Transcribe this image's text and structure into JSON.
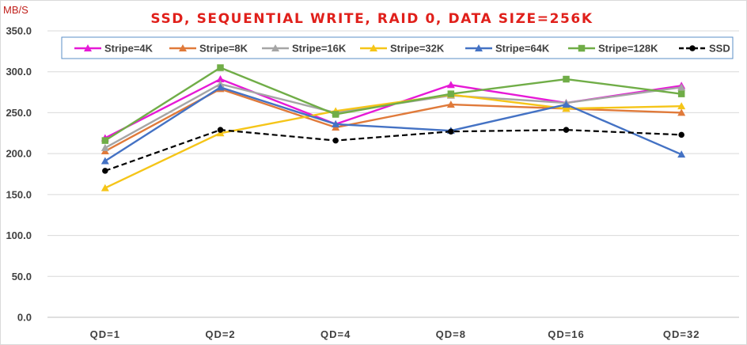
{
  "chart_data": {
    "type": "line",
    "title": "SSD, SEQUENTIAL WRITE, RAID 0, DATA SIZE=256K",
    "unit_label": "MB/S",
    "categories": [
      "QD=1",
      "QD=2",
      "QD=4",
      "QD=8",
      "QD=16",
      "QD=32"
    ],
    "ylim": [
      0,
      350
    ],
    "y_ticks": [
      "0.0",
      "50.0",
      "100.0",
      "150.0",
      "200.0",
      "250.0",
      "300.0",
      "350.0"
    ],
    "grid": "horizontal",
    "legend_position": "top",
    "series": [
      {
        "name": "Stripe=4K",
        "color": "#e619d6",
        "marker": "triangle",
        "dashed": false,
        "values": [
          219,
          291,
          236,
          284,
          262,
          283
        ]
      },
      {
        "name": "Stripe=8K",
        "color": "#e07a3a",
        "marker": "triangle",
        "dashed": false,
        "values": [
          203,
          279,
          232,
          260,
          255,
          250
        ]
      },
      {
        "name": "Stripe=16K",
        "color": "#a5a5a5",
        "marker": "triangle",
        "dashed": false,
        "values": [
          207,
          285,
          250,
          271,
          262,
          281
        ]
      },
      {
        "name": "Stripe=32K",
        "color": "#f5c518",
        "marker": "triangle",
        "dashed": false,
        "values": [
          158,
          225,
          252,
          272,
          255,
          258
        ]
      },
      {
        "name": "Stripe=64K",
        "color": "#4472c4",
        "marker": "triangle",
        "dashed": false,
        "values": [
          191,
          281,
          236,
          228,
          260,
          199
        ]
      },
      {
        "name": "Stripe=128K",
        "color": "#70ad47",
        "marker": "square",
        "dashed": false,
        "values": [
          216,
          305,
          248,
          273,
          291,
          273
        ]
      },
      {
        "name": "SSD",
        "color": "#000000",
        "marker": "circle",
        "dashed": true,
        "values": [
          179,
          229,
          216,
          227,
          229,
          223
        ]
      }
    ]
  }
}
